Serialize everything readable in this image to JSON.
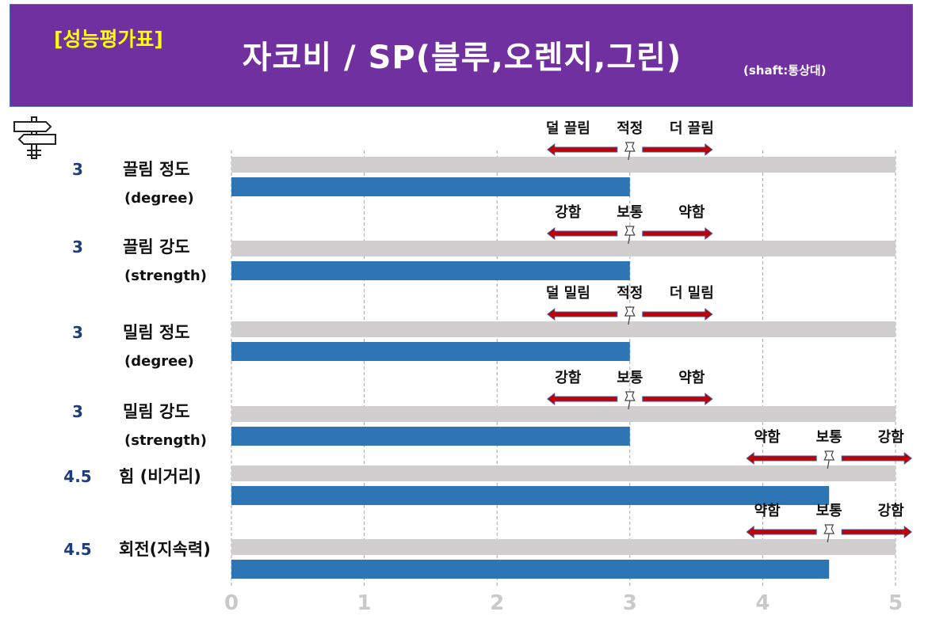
{
  "header": {
    "badge": "[성능평가표]",
    "title": "자코비 / SP(블루,오렌지,그린)",
    "subtitle": "(shaft:통상대)"
  },
  "icons": {
    "signpost": "signpost-icon",
    "pin": "pushpin-icon"
  },
  "colors": {
    "header_bg": "#7030a0",
    "bar": "#2e75b6",
    "track": "#d0cece",
    "arrow": "#c00000",
    "badge": "#ffff00"
  },
  "chart_data": {
    "type": "bar",
    "orientation": "horizontal",
    "xlim": [
      0,
      5
    ],
    "xticks": [
      "0",
      "1",
      "2",
      "3",
      "4",
      "5"
    ],
    "grid": true,
    "categories": [
      {
        "score": "3",
        "label": "끌림 정도",
        "sublabel": "(degree)",
        "value": 3,
        "scale": [
          "덜 끌림",
          "적정",
          "더 끌림"
        ]
      },
      {
        "score": "3",
        "label": "끌림 강도",
        "sublabel": "(strength)",
        "value": 3,
        "scale": [
          "강함",
          "보통",
          "약함"
        ]
      },
      {
        "score": "3",
        "label": "밀림 정도",
        "sublabel": "(degree)",
        "value": 3,
        "scale": [
          "덜 밀림",
          "적정",
          "더 밀림"
        ]
      },
      {
        "score": "3",
        "label": "밀림 강도",
        "sublabel": "(strength)",
        "value": 3,
        "scale": [
          "강함",
          "보통",
          "약함"
        ]
      },
      {
        "score": "4.5",
        "label": "힘 (비거리)",
        "sublabel": "",
        "value": 4.5,
        "scale": [
          "약함",
          "보통",
          "강함"
        ]
      },
      {
        "score": "4.5",
        "label": "회전(지속력)",
        "sublabel": "",
        "value": 4.5,
        "scale": [
          "약함",
          "보통",
          "강함"
        ]
      }
    ]
  }
}
